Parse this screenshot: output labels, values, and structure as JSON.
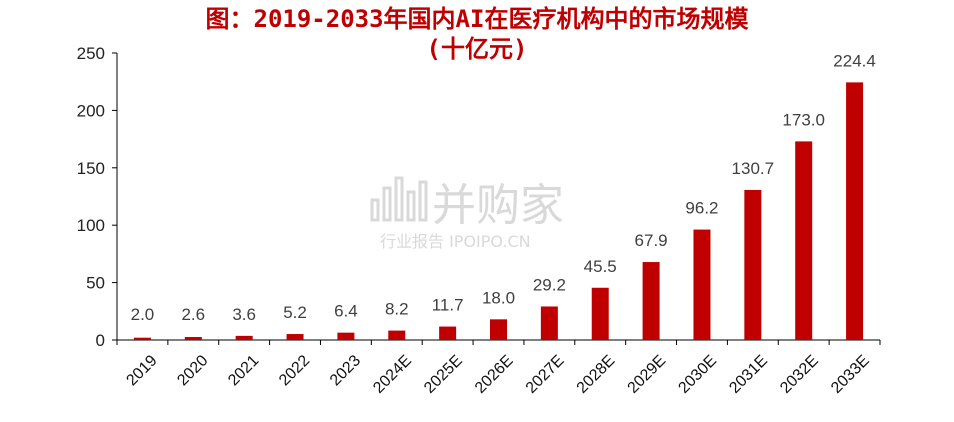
{
  "chart_data": {
    "type": "bar",
    "title": "图：2019-2033年国内AI在医疗机构中的市场规模",
    "subtitle": "(十亿元)",
    "categories": [
      "2019",
      "2020",
      "2021",
      "2022",
      "2023",
      "2024E",
      "2025E",
      "2026E",
      "2027E",
      "2028E",
      "2029E",
      "2030E",
      "2031E",
      "2032E",
      "2033E"
    ],
    "values": [
      2.0,
      2.6,
      3.6,
      5.2,
      6.4,
      8.2,
      11.7,
      18.0,
      29.2,
      45.5,
      67.9,
      96.2,
      130.7,
      173.0,
      224.4
    ],
    "data_labels": [
      "2.0",
      "2.6",
      "3.6",
      "5.2",
      "6.4",
      "8.2",
      "11.7",
      "18.0",
      "29.2",
      "45.5",
      "67.9",
      "96.2",
      "130.7",
      "173.0",
      "224.4"
    ],
    "ylim": [
      0,
      250
    ],
    "yticks": [
      0,
      50,
      100,
      150,
      200,
      250
    ],
    "xlabel": "",
    "ylabel": "",
    "bar_color": "#c00000",
    "grid": false,
    "legend": "none"
  },
  "watermark": {
    "main": "并购家",
    "sub": "行业报告 IPOIPO.CN"
  }
}
